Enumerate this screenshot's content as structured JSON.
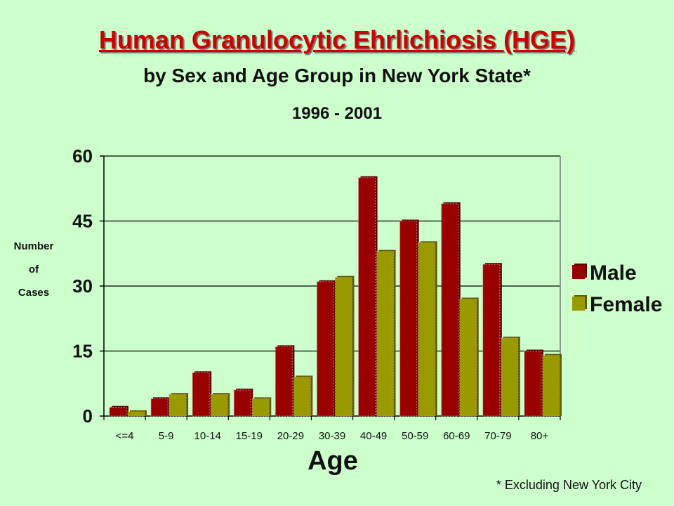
{
  "chart_data": {
    "type": "bar",
    "title": "Human Granulocytic Ehrlichiosis (HGE)",
    "subtitle": "by Sex and Age Group in New York State*",
    "period": "1996 - 2001",
    "ylabel": [
      "Number",
      "of",
      "Cases"
    ],
    "xlabel": "Age",
    "ylim": [
      0,
      60
    ],
    "yticks": [
      0,
      15,
      30,
      45,
      60
    ],
    "grid": true,
    "legend_position": "right",
    "categories": [
      "<=4",
      "5-9",
      "10-14",
      "15-19",
      "20-29",
      "30-39",
      "40-49",
      "50-59",
      "60-69",
      "70-79",
      "80+"
    ],
    "series": [
      {
        "name": "Male",
        "color": "#990000",
        "values": [
          2,
          4,
          10,
          6,
          16,
          31,
          55,
          45,
          49,
          35,
          15
        ]
      },
      {
        "name": "Female",
        "color": "#999900",
        "values": [
          1,
          5,
          5,
          4,
          9,
          32,
          38,
          40,
          27,
          18,
          14
        ]
      }
    ],
    "footnote": "* Excluding New York City"
  }
}
